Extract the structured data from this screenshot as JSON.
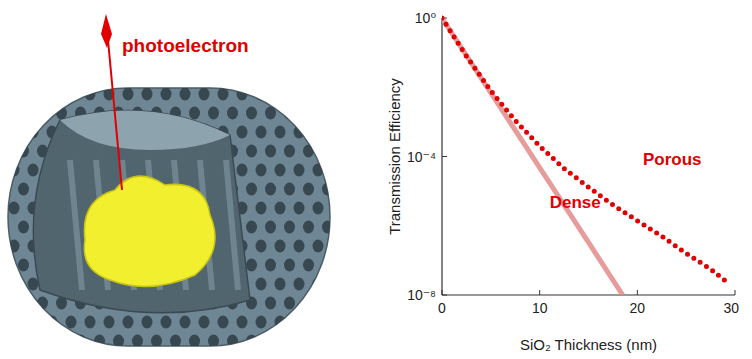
{
  "illustration": {
    "label": "photoelectron"
  },
  "chart_data": {
    "type": "line",
    "log": "y",
    "xlabel": "SiO₂ Thickness (nm)",
    "ylabel": "Transmission Efficiency",
    "xlim": [
      0,
      30
    ],
    "xticks": [
      0,
      10,
      20,
      30
    ],
    "ylim": [
      1e-08,
      1
    ],
    "yticks": [
      {
        "value": 1,
        "label": "10⁰"
      },
      {
        "value": 0.0001,
        "label": "10⁻⁴"
      },
      {
        "value": 1e-08,
        "label": "10⁻⁸"
      }
    ],
    "grid": false,
    "series": [
      {
        "name": "Dense",
        "color": "#e38b8b",
        "line_style": "solid",
        "x": [
          0,
          5,
          10,
          15,
          18.5
        ],
        "values": [
          1,
          0.0069,
          4.8e-05,
          3.3e-07,
          1e-08
        ]
      },
      {
        "name": "Porous",
        "color": "#e10000",
        "line_style": "dotted",
        "x": [
          0,
          2.5,
          5,
          7.5,
          10,
          12.5,
          15,
          17.5,
          20,
          22.5,
          25,
          27.5,
          29.5
        ],
        "values": [
          1,
          0.079,
          0.0079,
          0.0011,
          0.0002,
          4.5e-05,
          1.3e-05,
          4e-06,
          1.4e-06,
          5e-07,
          1.6e-07,
          5.6e-08,
          2e-08
        ]
      }
    ]
  }
}
